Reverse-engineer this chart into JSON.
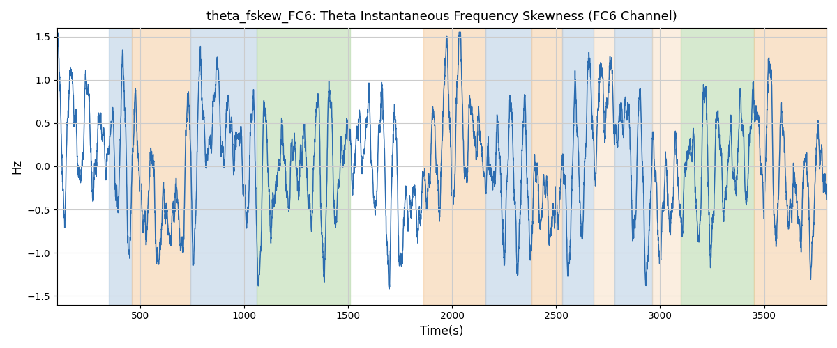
{
  "title": "theta_fskew_FC6: Theta Instantaneous Frequency Skewness (FC6 Channel)",
  "xlabel": "Time(s)",
  "ylabel": "Hz",
  "ylim": [
    -1.6,
    1.6
  ],
  "xlim": [
    100,
    3800
  ],
  "line_color": "#2b6cb0",
  "line_width": 1.1,
  "grid_color": "#cccccc",
  "yticks": [
    -1.5,
    -1.0,
    -0.5,
    0.0,
    0.5,
    1.0,
    1.5
  ],
  "bands": [
    {
      "xmin": 350,
      "xmax": 460,
      "color": "#aec8e0",
      "alpha": 0.5
    },
    {
      "xmin": 460,
      "xmax": 740,
      "color": "#f5c999",
      "alpha": 0.5
    },
    {
      "xmin": 740,
      "xmax": 1060,
      "color": "#aec8e0",
      "alpha": 0.5
    },
    {
      "xmin": 1060,
      "xmax": 1510,
      "color": "#aed4a0",
      "alpha": 0.5
    },
    {
      "xmin": 1860,
      "xmax": 2160,
      "color": "#f5c999",
      "alpha": 0.5
    },
    {
      "xmin": 2160,
      "xmax": 2380,
      "color": "#aec8e0",
      "alpha": 0.5
    },
    {
      "xmin": 2380,
      "xmax": 2530,
      "color": "#f5c999",
      "alpha": 0.5
    },
    {
      "xmin": 2530,
      "xmax": 2680,
      "color": "#aec8e0",
      "alpha": 0.5
    },
    {
      "xmin": 2680,
      "xmax": 2780,
      "color": "#f5c999",
      "alpha": 0.3
    },
    {
      "xmin": 2780,
      "xmax": 2960,
      "color": "#aec8e0",
      "alpha": 0.5
    },
    {
      "xmin": 2960,
      "xmax": 3100,
      "color": "#f5c999",
      "alpha": 0.3
    },
    {
      "xmin": 3100,
      "xmax": 3450,
      "color": "#aed4a0",
      "alpha": 0.5
    },
    {
      "xmin": 3450,
      "xmax": 3800,
      "color": "#f5c999",
      "alpha": 0.5
    }
  ],
  "t_start": 100,
  "t_end": 3800,
  "n_points": 5000,
  "seed": 42
}
